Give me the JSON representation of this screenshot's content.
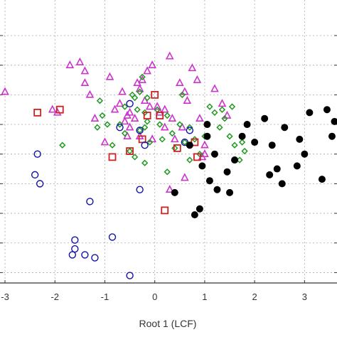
{
  "chart_data": {
    "type": "scatter",
    "xlabel": "Root 1 (LCF)",
    "ylabel": "",
    "xlim": [
      -3.1,
      3.65
    ],
    "ylim": [
      -4.35,
      5.2
    ],
    "x_ticks": [
      -3,
      -2,
      -1,
      0,
      1,
      2,
      3
    ],
    "x_tick_labels": [
      "-3",
      "-2",
      "-1",
      "0",
      "1",
      "2",
      "3"
    ],
    "y_grid": [
      4,
      3,
      2,
      1,
      0,
      -1,
      -2,
      -3,
      -4
    ],
    "grid": true,
    "series": [
      {
        "marker": "triangle",
        "color": "#cc33cc",
        "points": [
          [
            -3.0,
            2.1
          ],
          [
            -1.7,
            3.0
          ],
          [
            -1.5,
            3.1
          ],
          [
            -2.05,
            1.5
          ],
          [
            -1.95,
            1.4
          ],
          [
            -1.4,
            2.8
          ],
          [
            -1.4,
            2.4
          ],
          [
            -1.3,
            2.0
          ],
          [
            -1.2,
            1.2
          ],
          [
            -0.9,
            2.6
          ],
          [
            -0.8,
            1.5
          ],
          [
            -0.7,
            1.7
          ],
          [
            -0.6,
            1.1
          ],
          [
            -0.5,
            1.4
          ],
          [
            -0.3,
            2.2
          ],
          [
            -0.25,
            2.5
          ],
          [
            -0.15,
            2.8
          ],
          [
            -0.05,
            3.0
          ],
          [
            -0.35,
            2.4
          ],
          [
            -0.2,
            1.8
          ],
          [
            -0.1,
            1.6
          ],
          [
            -0.5,
            0.9
          ],
          [
            -0.55,
            0.6
          ],
          [
            -1.0,
            0.4
          ],
          [
            -0.3,
            0.6
          ],
          [
            -0.05,
            0.5
          ],
          [
            0.05,
            1.6
          ],
          [
            0.2,
            1.5
          ],
          [
            0.35,
            1.2
          ],
          [
            0.5,
            2.4
          ],
          [
            0.6,
            2.1
          ],
          [
            0.75,
            2.9
          ],
          [
            0.85,
            2.5
          ],
          [
            0.65,
            1.8
          ],
          [
            0.3,
            3.3
          ],
          [
            0.9,
            1.2
          ],
          [
            1.0,
            0.0
          ],
          [
            1.0,
            0.3
          ],
          [
            0.95,
            -0.1
          ],
          [
            1.2,
            2.2
          ],
          [
            1.35,
            1.7
          ],
          [
            1.45,
            1.3
          ],
          [
            0.3,
            -1.2
          ],
          [
            0.6,
            -0.8
          ],
          [
            0.2,
            0.9
          ],
          [
            0.55,
            0.9
          ],
          [
            -0.65,
            2.1
          ],
          [
            -0.4,
            1.2
          ],
          [
            -0.55,
            1.3
          ],
          [
            0.1,
            1.4
          ],
          [
            0.4,
            0.5
          ]
        ]
      },
      {
        "marker": "diamond",
        "color": "#229922",
        "points": [
          [
            -1.1,
            1.8
          ],
          [
            -1.05,
            1.3
          ],
          [
            -0.95,
            1.0
          ],
          [
            -0.85,
            0.3
          ],
          [
            -0.7,
            1.0
          ],
          [
            -0.6,
            0.7
          ],
          [
            -0.4,
            1.9
          ],
          [
            -0.35,
            1.5
          ],
          [
            -0.3,
            2.1
          ],
          [
            -0.45,
            2.0
          ],
          [
            -0.25,
            2.6
          ],
          [
            -0.2,
            1.4
          ],
          [
            -0.15,
            1.1
          ],
          [
            -0.3,
            0.8
          ],
          [
            -0.1,
            0.4
          ],
          [
            -0.5,
            0.1
          ],
          [
            -0.4,
            -0.1
          ],
          [
            -0.2,
            0.9
          ],
          [
            0.05,
            1.5
          ],
          [
            0.1,
            1.0
          ],
          [
            0.15,
            0.5
          ],
          [
            0.25,
            1.3
          ],
          [
            0.35,
            0.7
          ],
          [
            0.4,
            0.2
          ],
          [
            0.5,
            1.0
          ],
          [
            0.6,
            0.4
          ],
          [
            0.7,
            -0.2
          ],
          [
            0.8,
            0.5
          ],
          [
            0.9,
            0.0
          ],
          [
            1.0,
            0.6
          ],
          [
            1.1,
            1.6
          ],
          [
            1.2,
            1.4
          ],
          [
            1.3,
            0.9
          ],
          [
            1.35,
            1.5
          ],
          [
            1.4,
            1.2
          ],
          [
            1.55,
            1.6
          ],
          [
            1.6,
            0.3
          ],
          [
            1.7,
            -0.2
          ],
          [
            1.75,
            0.4
          ],
          [
            1.8,
            0.1
          ],
          [
            1.5,
            0.6
          ],
          [
            -1.85,
            0.3
          ],
          [
            -0.6,
            1.6
          ],
          [
            0.55,
            2.0
          ],
          [
            -0.15,
            1.9
          ],
          [
            0.25,
            -0.6
          ],
          [
            -0.2,
            -0.3
          ],
          [
            -1.15,
            0.9
          ],
          [
            0.7,
            0.9
          ]
        ]
      },
      {
        "marker": "square",
        "color": "#cc2222",
        "points": [
          [
            -2.35,
            1.4
          ],
          [
            -1.9,
            1.5
          ],
          [
            -0.85,
            -0.1
          ],
          [
            -0.5,
            0.1
          ],
          [
            -0.25,
            0.5
          ],
          [
            0.1,
            1.3
          ],
          [
            0.45,
            0.2
          ],
          [
            0.8,
            0.4
          ],
          [
            0.2,
            -1.9
          ],
          [
            0.85,
            -0.1
          ],
          [
            -0.15,
            1.3
          ],
          [
            0.0,
            2.0
          ]
        ]
      },
      {
        "marker": "circle",
        "color": "#1111aa",
        "points": [
          [
            -2.35,
            0.0
          ],
          [
            -2.4,
            -0.7
          ],
          [
            -2.3,
            -1.0
          ],
          [
            -1.3,
            -1.6
          ],
          [
            -1.6,
            -2.9
          ],
          [
            -1.6,
            -3.2
          ],
          [
            -1.65,
            -3.4
          ],
          [
            -1.4,
            -3.4
          ],
          [
            -1.2,
            -3.5
          ],
          [
            -0.85,
            -2.8
          ],
          [
            -0.5,
            -4.1
          ],
          [
            -0.3,
            -1.2
          ],
          [
            0.7,
            0.8
          ],
          [
            -0.5,
            1.7
          ],
          [
            -0.3,
            0.8
          ],
          [
            -0.7,
            0.9
          ],
          [
            -0.2,
            0.3
          ],
          [
            0.6,
            0.4
          ]
        ]
      },
      {
        "marker": "dot",
        "color": "#000000",
        "points": [
          [
            1.05,
            1.0
          ],
          [
            1.05,
            0.6
          ],
          [
            0.7,
            0.3
          ],
          [
            1.2,
            0.0
          ],
          [
            0.95,
            -0.4
          ],
          [
            1.1,
            -0.9
          ],
          [
            1.25,
            -1.2
          ],
          [
            1.45,
            -0.6
          ],
          [
            1.6,
            -0.2
          ],
          [
            1.75,
            0.6
          ],
          [
            2.0,
            0.4
          ],
          [
            2.35,
            0.3
          ],
          [
            2.45,
            -0.5
          ],
          [
            2.55,
            -1.0
          ],
          [
            2.6,
            0.9
          ],
          [
            2.9,
            0.5
          ],
          [
            2.85,
            -0.4
          ],
          [
            3.0,
            0.0
          ],
          [
            3.45,
            1.5
          ],
          [
            3.55,
            0.6
          ],
          [
            3.6,
            1.1
          ],
          [
            0.4,
            -1.3
          ],
          [
            0.9,
            -1.85
          ],
          [
            0.8,
            -2.05
          ],
          [
            1.5,
            -1.3
          ],
          [
            2.3,
            -0.7
          ],
          [
            3.35,
            -0.85
          ],
          [
            1.85,
            1.0
          ],
          [
            2.2,
            1.2
          ],
          [
            3.1,
            1.4
          ]
        ]
      }
    ]
  }
}
